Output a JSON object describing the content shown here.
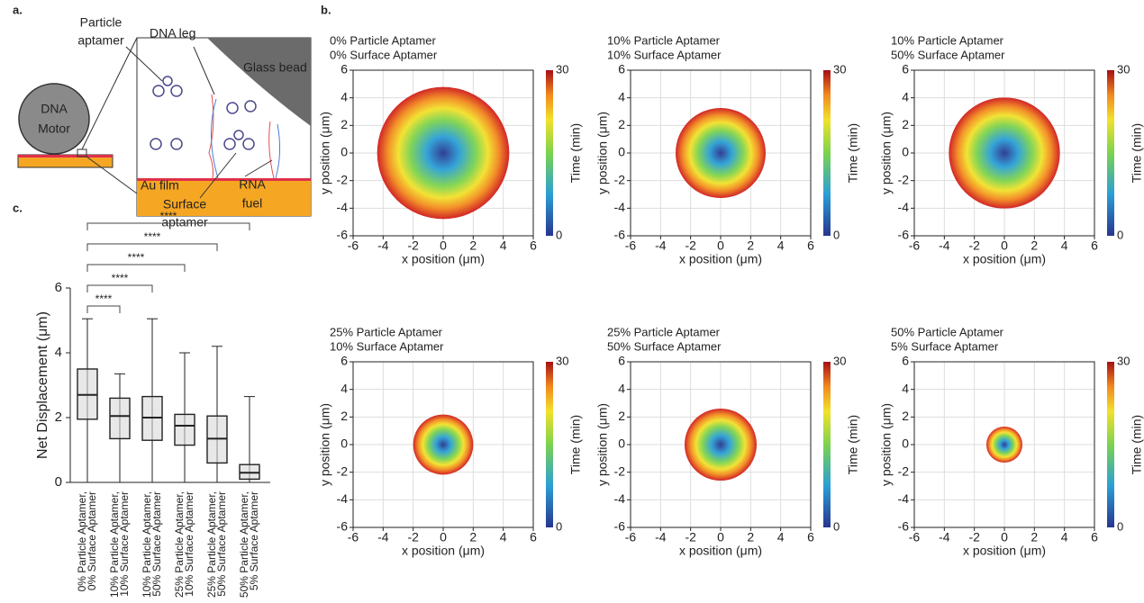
{
  "panel_labels": [
    "a.",
    "b.",
    "c."
  ],
  "diagram": {
    "particle_aptamer": [
      "Particle",
      "aptamer"
    ],
    "dna_leg": "DNA leg",
    "glass_bead": "Glass bead",
    "dna_motor": [
      "DNA",
      "Motor"
    ],
    "au_film": "Au film",
    "surface_aptamer": [
      "Surface",
      "aptamer"
    ],
    "rna_fuel": [
      "RNA",
      "fuel"
    ]
  },
  "chart_data": [
    {
      "type": "box",
      "ylabel": "Net Displacement  (μm)",
      "categories": [
        [
          "0% Particle Aptamer,",
          "0% Surface Aptamer"
        ],
        [
          "10% Particle Aptamer,",
          "10% Surface Aptamer"
        ],
        [
          "10% Particle Aptamer,",
          "50% Surface Aptamer"
        ],
        [
          "25% Particle Aptamer,",
          "10% Surface Aptamer"
        ],
        [
          "25% Particle Aptamer,",
          "50% Surface Aptamer"
        ],
        [
          "50% Particle Aptamer,",
          "5% Surface Aptamer"
        ]
      ],
      "min": [
        0,
        0,
        0,
        0,
        0,
        0
      ],
      "q1": [
        1.95,
        1.35,
        1.3,
        1.15,
        0.6,
        0.1
      ],
      "median": [
        2.7,
        2.05,
        2.0,
        1.75,
        1.35,
        0.3
      ],
      "q3": [
        3.5,
        2.6,
        2.65,
        2.1,
        2.05,
        0.55
      ],
      "max": [
        5.05,
        3.35,
        5.05,
        4.0,
        4.2,
        2.65
      ],
      "ylim": [
        0,
        6
      ],
      "yticks": [
        0,
        2,
        4,
        6
      ],
      "significance": [
        "****",
        "****",
        "****",
        "****",
        "****"
      ]
    },
    {
      "type": "trajectory",
      "title": [
        "0% Particle Aptamer",
        "0% Surface Aptamer"
      ],
      "xlabel": "x position (μm)",
      "ylabel": "y position (μm)",
      "xlim": [
        -6,
        6
      ],
      "ylim": [
        -6,
        6
      ],
      "xticks": [
        -6,
        -4,
        -2,
        0,
        2,
        4,
        6
      ],
      "yticks": [
        -6,
        -4,
        -2,
        0,
        2,
        4,
        6
      ],
      "grid": true,
      "radius": 4.4,
      "colorbar": {
        "label": "Time (min)",
        "lim": [
          0,
          30
        ],
        "ticks": [
          0,
          30
        ]
      }
    },
    {
      "type": "trajectory",
      "title": [
        "10% Particle Aptamer",
        "10% Surface Aptamer"
      ],
      "xlabel": "x position (μm)",
      "ylabel": "y position (μm)",
      "xlim": [
        -6,
        6
      ],
      "ylim": [
        -6,
        6
      ],
      "xticks": [
        -6,
        -4,
        -2,
        0,
        2,
        4,
        6
      ],
      "yticks": [
        -6,
        -4,
        -2,
        0,
        2,
        4,
        6
      ],
      "grid": true,
      "radius": 3.0,
      "colorbar": {
        "label": "Time (min)",
        "lim": [
          0,
          30
        ],
        "ticks": [
          0,
          30
        ]
      }
    },
    {
      "type": "trajectory",
      "title": [
        "10% Particle Aptamer",
        "50% Surface Aptamer"
      ],
      "xlabel": "x position (μm)",
      "ylabel": "y position (μm)",
      "xlim": [
        -6,
        6
      ],
      "ylim": [
        -6,
        6
      ],
      "xticks": [
        -6,
        -4,
        -2,
        0,
        2,
        4,
        6
      ],
      "yticks": [
        -6,
        -4,
        -2,
        0,
        2,
        4,
        6
      ],
      "grid": true,
      "radius": 3.7,
      "colorbar": {
        "label": "Time (min)",
        "lim": [
          0,
          30
        ],
        "ticks": [
          0,
          30
        ]
      }
    },
    {
      "type": "trajectory",
      "title": [
        "25% Particle Aptamer",
        "10% Surface Aptamer"
      ],
      "xlabel": "x position (μm)",
      "ylabel": "y position (μm)",
      "xlim": [
        -6,
        6
      ],
      "ylim": [
        -6,
        6
      ],
      "xticks": [
        -6,
        -4,
        -2,
        0,
        2,
        4,
        6
      ],
      "yticks": [
        -6,
        -4,
        -2,
        0,
        2,
        4,
        6
      ],
      "grid": true,
      "radius": 2.0,
      "colorbar": {
        "label": "Time (min)",
        "lim": [
          0,
          30
        ],
        "ticks": [
          0,
          30
        ]
      }
    },
    {
      "type": "trajectory",
      "title": [
        "25% Particle Aptamer",
        "50% Surface Aptamer"
      ],
      "xlabel": "x position (μm)",
      "ylabel": "y position (μm)",
      "xlim": [
        -6,
        6
      ],
      "ylim": [
        -6,
        6
      ],
      "xticks": [
        -6,
        -4,
        -2,
        0,
        2,
        4,
        6
      ],
      "yticks": [
        -6,
        -4,
        -2,
        0,
        2,
        4,
        6
      ],
      "grid": true,
      "radius": 2.4,
      "colorbar": {
        "label": "Time (min)",
        "lim": [
          0,
          30
        ],
        "ticks": [
          0,
          30
        ]
      }
    },
    {
      "type": "trajectory",
      "title": [
        "50% Particle Aptamer",
        "5% Surface Aptamer"
      ],
      "xlabel": "x position (μm)",
      "ylabel": "y position (μm)",
      "xlim": [
        -6,
        6
      ],
      "ylim": [
        -6,
        6
      ],
      "xticks": [
        -6,
        -4,
        -2,
        0,
        2,
        4,
        6
      ],
      "yticks": [
        -6,
        -4,
        -2,
        0,
        2,
        4,
        6
      ],
      "grid": true,
      "radius": 1.2,
      "colorbar": {
        "label": "Time (min)",
        "lim": [
          0,
          30
        ],
        "ticks": [
          0,
          30
        ]
      }
    }
  ]
}
